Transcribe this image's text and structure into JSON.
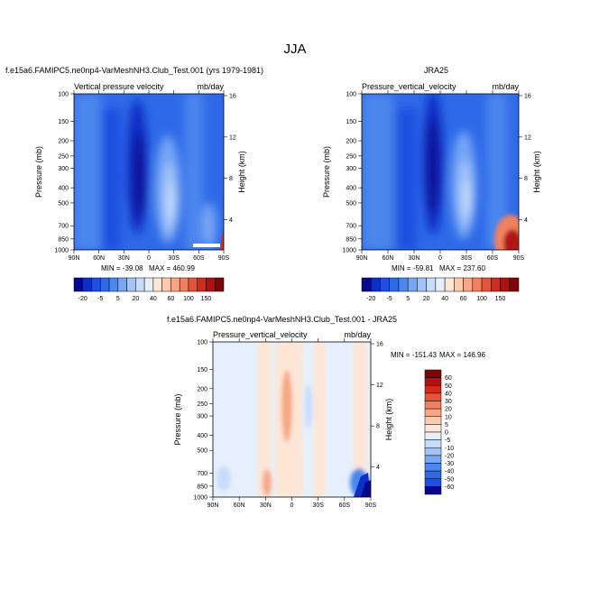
{
  "page": {
    "title": "JJA"
  },
  "chart_data": [
    {
      "type": "heatmap",
      "title": "f.e15a6.FAMIPC5.ne0np4-VarMeshNH3.Club_Test.001 (yrs 1979-1981)",
      "left_label": "Vertical pressure velocity",
      "right_label": "mb/day",
      "xlabel": "",
      "ylabel": "Pressure (mb)",
      "y2label": "Height (km)",
      "x_ticks": [
        "90N",
        "60N",
        "30N",
        "0",
        "30S",
        "60S",
        "90S"
      ],
      "y_ticks": [
        "100",
        "150",
        "200",
        "250",
        "300",
        "400",
        "500",
        "700",
        "850",
        "1000"
      ],
      "y2_ticks": [
        "16",
        "12",
        "8",
        "4"
      ],
      "x_range": [
        "90N",
        "90S"
      ],
      "y_range": [
        1000,
        100
      ],
      "y_scale": "log",
      "min_label": "MIN = -39.08",
      "max_label": "MAX = 460.99"
    },
    {
      "type": "heatmap",
      "title": "JRA25",
      "left_label": "Pressure_vertical_velocity",
      "right_label": "mb/day",
      "xlabel": "",
      "ylabel": "Pressure (mb)",
      "y2label": "Height (km)",
      "x_ticks": [
        "90N",
        "60N",
        "30N",
        "0",
        "30S",
        "60S",
        "90S"
      ],
      "y_ticks": [
        "100",
        "150",
        "200",
        "250",
        "300",
        "400",
        "500",
        "700",
        "850",
        "1000"
      ],
      "y2_ticks": [
        "16",
        "12",
        "8",
        "4"
      ],
      "x_range": [
        "90N",
        "90S"
      ],
      "y_range": [
        1000,
        100
      ],
      "y_scale": "log",
      "min_label": "MIN = -59.81",
      "max_label": "MAX = 237.60"
    },
    {
      "type": "heatmap",
      "title": "f.e15a6.FAMIPC5.ne0np4-VarMeshNH3.Club_Test.001 - JRA25",
      "left_label": "Pressure_vertical_velocity",
      "right_label": "mb/day",
      "xlabel": "",
      "ylabel": "Pressure (mb)",
      "y2label": "Height (km)",
      "x_ticks": [
        "90N",
        "60N",
        "30N",
        "0",
        "30S",
        "60S",
        "90S"
      ],
      "y_ticks": [
        "100",
        "150",
        "200",
        "250",
        "300",
        "400",
        "500",
        "700",
        "850",
        "1000"
      ],
      "y2_ticks": [
        "16",
        "12",
        "8",
        "4"
      ],
      "x_range": [
        "90N",
        "90S"
      ],
      "y_range": [
        1000,
        100
      ],
      "y_scale": "log",
      "min_label": "MIN = -151.43",
      "max_label": "MAX = 146.96"
    }
  ],
  "colorbars": {
    "top": {
      "colors": [
        "#08088e",
        "#0c2fc6",
        "#1d4fe0",
        "#2e6ae8",
        "#4c86ee",
        "#76a6f4",
        "#a2c4f8",
        "#c8dcfa",
        "#e6f0fc",
        "#fde6d6",
        "#fbcab0",
        "#f7a787",
        "#f1805f",
        "#e5533a",
        "#d42a1c",
        "#b01212",
        "#7c0707"
      ],
      "labels": [
        "-20",
        "-5",
        "5",
        "20",
        "40",
        "60",
        "100",
        "150"
      ]
    },
    "diff": {
      "colors": [
        "#7c0707",
        "#b01212",
        "#d42a1c",
        "#e5533a",
        "#f1805f",
        "#f7a787",
        "#fbcab0",
        "#fde6d6",
        "#e6f0fc",
        "#c8dcfa",
        "#a2c4f8",
        "#76a6f4",
        "#4c86ee",
        "#2e6ae8",
        "#1d4fe0",
        "#08088e"
      ],
      "labels": [
        "60",
        "50",
        "40",
        "30",
        "20",
        "10",
        "5",
        "0",
        "-5",
        "-10",
        "-20",
        "-30",
        "-40",
        "-50",
        "-60"
      ]
    }
  }
}
